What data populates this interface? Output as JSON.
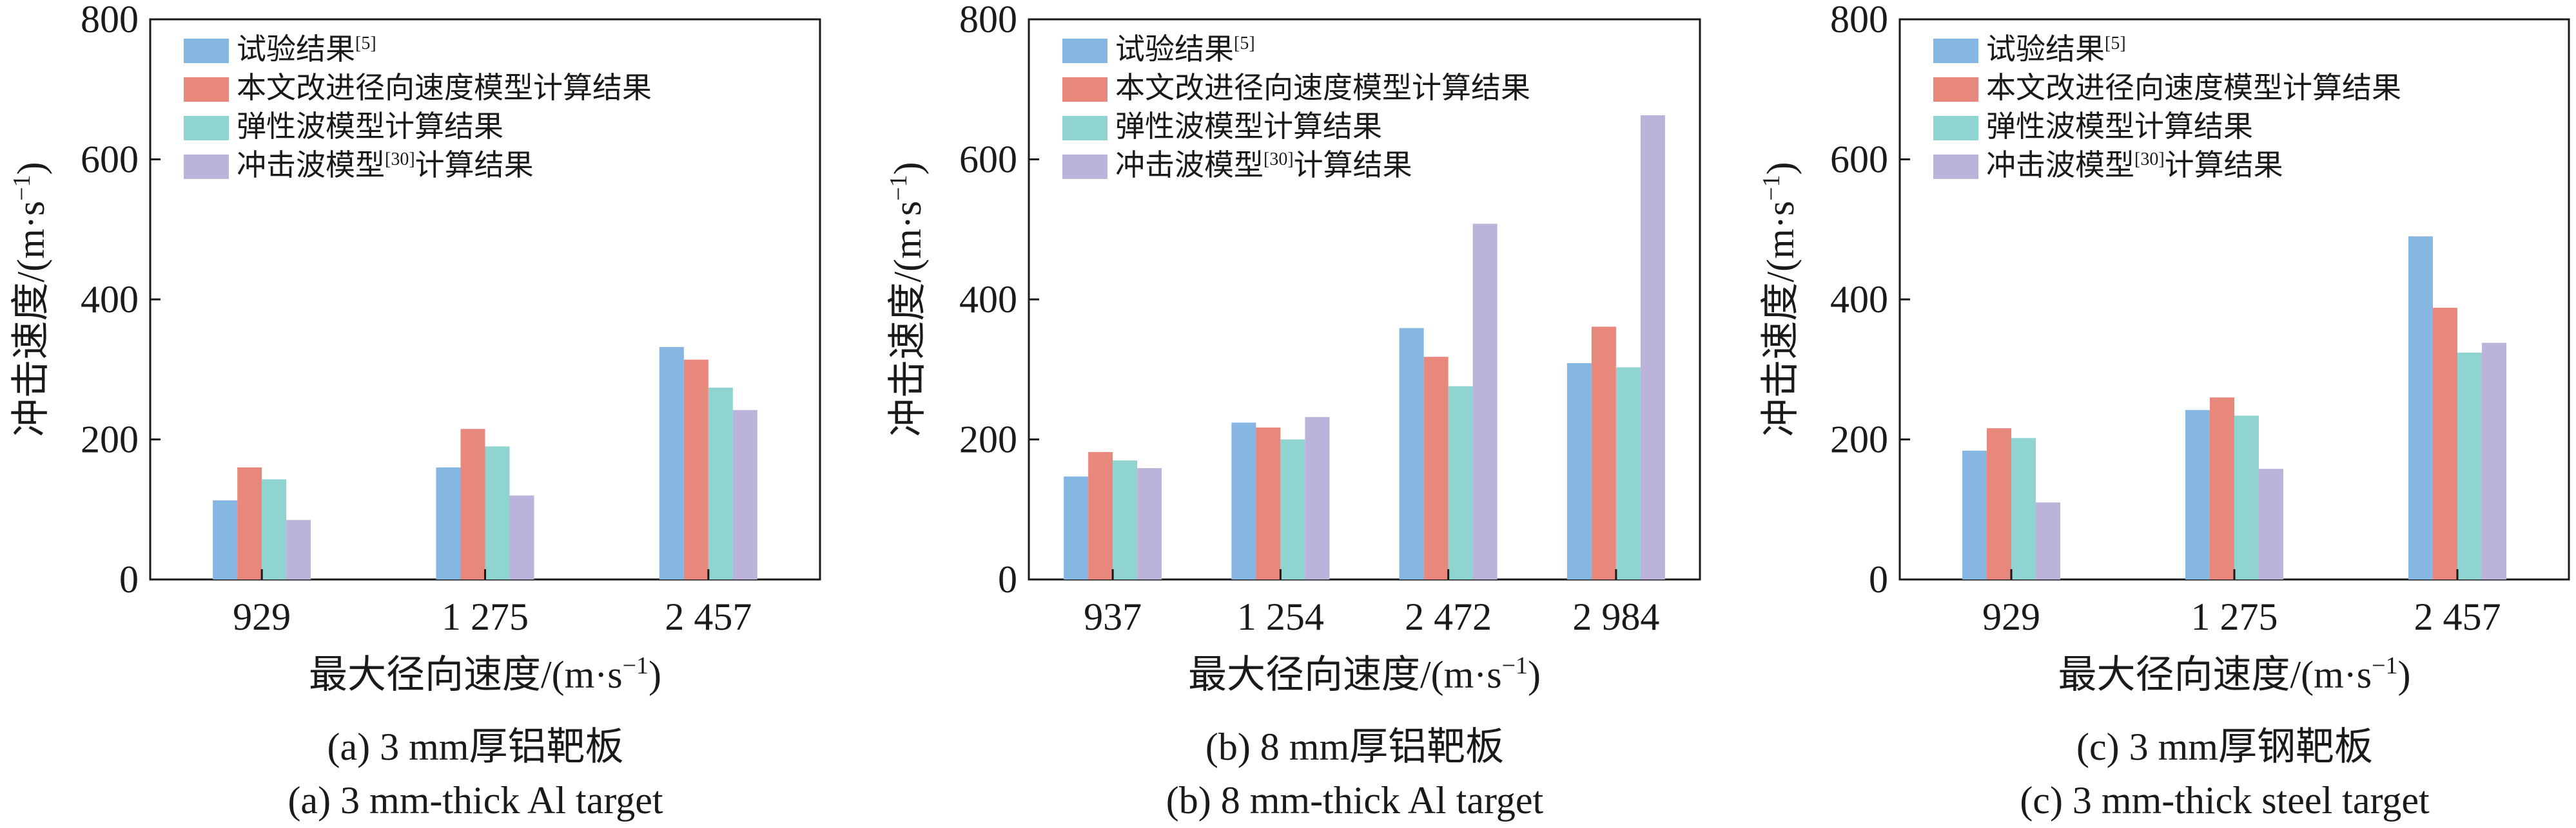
{
  "colors": {
    "series": [
      "#86b6e2",
      "#e8877c",
      "#8fd4d0",
      "#bcb3db"
    ],
    "axis": "#1a1a1a",
    "text": "#1a1a1a",
    "background": "#ffffff"
  },
  "chart_data": [
    {
      "type": "bar",
      "xlabel": "最大径向速度/(m·s⁻¹)",
      "ylabel": "冲击速度/(m·s⁻¹)",
      "ylim": [
        0,
        800
      ],
      "yticks": [
        0,
        200,
        400,
        600,
        800
      ],
      "grid": false,
      "legend": "top-left",
      "categories": [
        "929",
        "1 275",
        "2 457"
      ],
      "series": [
        {
          "name": "试验结果[5]",
          "values": [
            113,
            160,
            332
          ]
        },
        {
          "name": "本文改进径向速度模型计算结果",
          "values": [
            160,
            215,
            314
          ]
        },
        {
          "name": "弹性波模型计算结果",
          "values": [
            143,
            190,
            274
          ]
        },
        {
          "name": "冲击波模型[30]计算结果",
          "values": [
            85,
            120,
            242
          ]
        }
      ],
      "caption_zh": "(a) 3 mm厚铝靶板",
      "caption_en": "(a) 3 mm-thick Al target"
    },
    {
      "type": "bar",
      "xlabel": "最大径向速度/(m·s⁻¹)",
      "ylabel": "冲击速度/(m·s⁻¹)",
      "ylim": [
        0,
        800
      ],
      "yticks": [
        0,
        200,
        400,
        600,
        800
      ],
      "grid": false,
      "legend": "top-left",
      "categories": [
        "937",
        "1 254",
        "2 472",
        "2 984"
      ],
      "series": [
        {
          "name": "试验结果[5]",
          "values": [
            147,
            224,
            359,
            309
          ]
        },
        {
          "name": "本文改进径向速度模型计算结果",
          "values": [
            182,
            217,
            318,
            361
          ]
        },
        {
          "name": "弹性波模型计算结果",
          "values": [
            170,
            200,
            276,
            303
          ]
        },
        {
          "name": "冲击波模型[30]计算结果",
          "values": [
            159,
            232,
            508,
            663
          ]
        }
      ],
      "caption_zh": "(b) 8 mm厚铝靶板",
      "caption_en": "(b) 8 mm-thick Al target"
    },
    {
      "type": "bar",
      "xlabel": "最大径向速度/(m·s⁻¹)",
      "ylabel": "冲击速度/(m·s⁻¹)",
      "ylim": [
        0,
        800
      ],
      "yticks": [
        0,
        200,
        400,
        600,
        800
      ],
      "grid": false,
      "legend": "top-left",
      "categories": [
        "929",
        "1 275",
        "2 457"
      ],
      "series": [
        {
          "name": "试验结果[5]",
          "values": [
            184,
            242,
            490
          ]
        },
        {
          "name": "本文改进径向速度模型计算结果",
          "values": [
            216,
            260,
            388
          ]
        },
        {
          "name": "弹性波模型计算结果",
          "values": [
            202,
            234,
            324
          ]
        },
        {
          "name": "冲击波模型[30]计算结果",
          "values": [
            110,
            158,
            338
          ]
        }
      ],
      "caption_zh": "(c) 3 mm厚钢靶板",
      "caption_en": "(c) 3 mm-thick steel target"
    }
  ]
}
